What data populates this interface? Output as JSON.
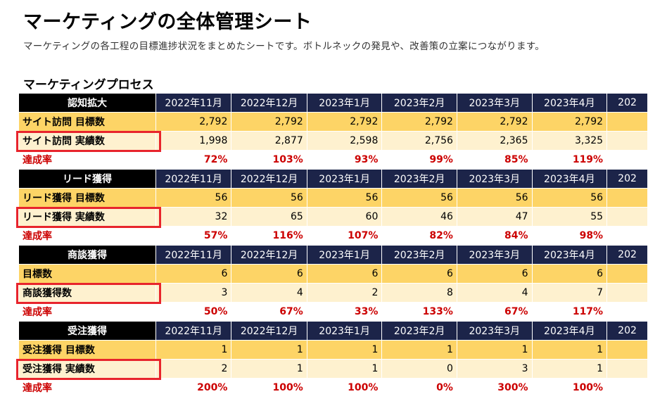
{
  "title": "マーケティングの全体管理シート",
  "subtitle": "マーケティングの各工程の目標進捗状況をまとめたシートです。ボトルネックの発見や、改善策の立案につながります。",
  "section_title": "マーケティングプロセス",
  "months": [
    "2022年11月",
    "2022年12月",
    "2023年1月",
    "2023年2月",
    "2023年3月",
    "2023年4月",
    "202"
  ],
  "blocks": [
    {
      "header": "認知拡大",
      "rows": [
        {
          "label": "サイト訪問 目標数",
          "values": [
            "2,792",
            "2,792",
            "2,792",
            "2,792",
            "2,792",
            "2,792",
            ""
          ]
        },
        {
          "label": "サイト訪問 実績数",
          "values": [
            "1,998",
            "2,877",
            "2,598",
            "2,756",
            "2,365",
            "3,325",
            ""
          ]
        },
        {
          "label": "達成率",
          "values": [
            "72%",
            "103%",
            "93%",
            "99%",
            "85%",
            "119%",
            ""
          ]
        }
      ]
    },
    {
      "header": "リード獲得",
      "rows": [
        {
          "label": "リード獲得 目標数",
          "values": [
            "56",
            "56",
            "56",
            "56",
            "56",
            "56",
            ""
          ]
        },
        {
          "label": "リード獲得 実績数",
          "values": [
            "32",
            "65",
            "60",
            "46",
            "47",
            "55",
            ""
          ]
        },
        {
          "label": "達成率",
          "values": [
            "57%",
            "116%",
            "107%",
            "82%",
            "84%",
            "98%",
            ""
          ]
        }
      ]
    },
    {
      "header": "商談獲得",
      "rows": [
        {
          "label": "目標数",
          "values": [
            "6",
            "6",
            "6",
            "6",
            "6",
            "6",
            ""
          ]
        },
        {
          "label": "商談獲得数",
          "values": [
            "3",
            "4",
            "2",
            "8",
            "4",
            "7",
            ""
          ]
        },
        {
          "label": "達成率",
          "values": [
            "50%",
            "67%",
            "33%",
            "133%",
            "67%",
            "117%",
            ""
          ]
        }
      ]
    },
    {
      "header": "受注獲得",
      "rows": [
        {
          "label": "受注獲得 目標数",
          "values": [
            "1",
            "1",
            "1",
            "1",
            "1",
            "1",
            ""
          ]
        },
        {
          "label": "受注獲得 実績数",
          "values": [
            "2",
            "1",
            "1",
            "0",
            "3",
            "1",
            ""
          ]
        },
        {
          "label": "達成率",
          "values": [
            "200%",
            "100%",
            "100%",
            "0%",
            "300%",
            "100%",
            ""
          ]
        }
      ]
    }
  ],
  "colors": {
    "header_black": "#000000",
    "header_navy": "#1c2449",
    "target_row": "#fdd466",
    "actual_row": "#fef1cf",
    "rate_text": "#cc0000",
    "highlight_box": "#e8242c"
  }
}
